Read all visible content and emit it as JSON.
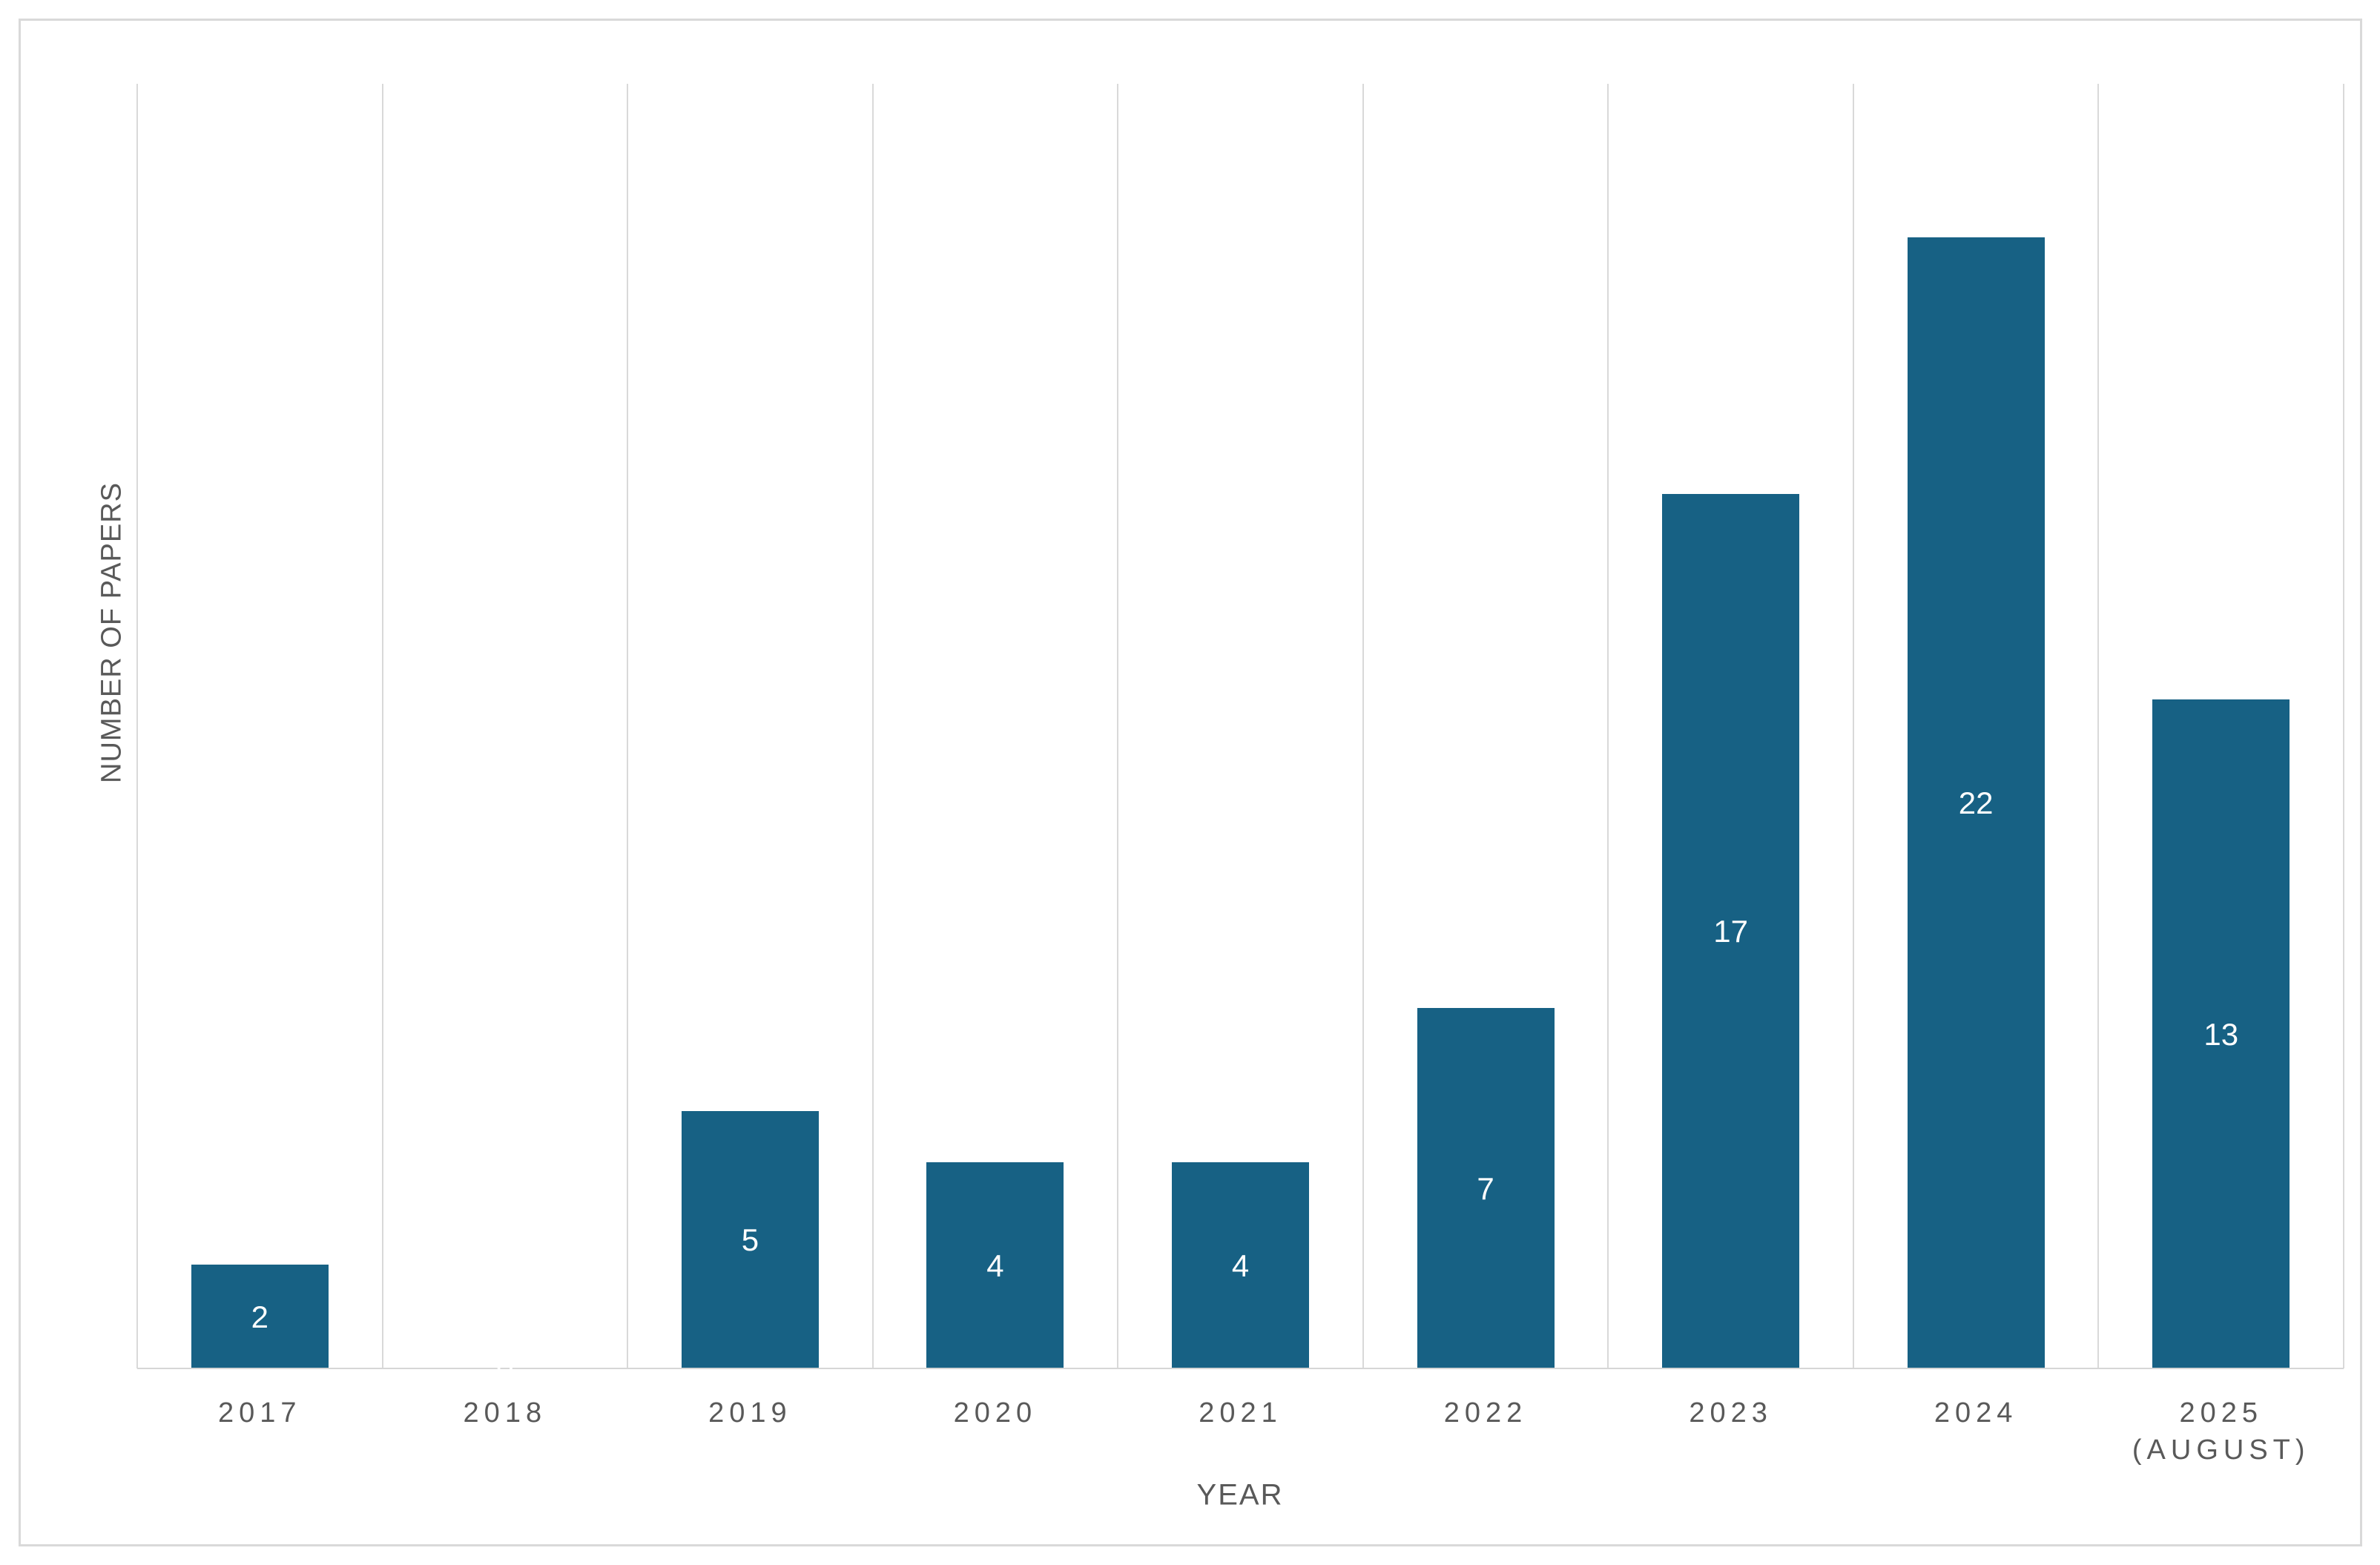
{
  "chart_data": {
    "type": "bar",
    "title": "",
    "xlabel": "YEAR",
    "ylabel": "NUMBER OF PAPERS",
    "categories": [
      "2017",
      "2018",
      "2019",
      "2020",
      "2021",
      "2022",
      "2023",
      "2024",
      "2025\n(AUGUST)"
    ],
    "values": [
      2,
      0,
      5,
      4,
      4,
      7,
      17,
      22,
      13
    ],
    "data_labels": [
      "2",
      "0",
      "5",
      "4",
      "4",
      "7",
      "17",
      "22",
      "13"
    ],
    "ylim": [
      0,
      25
    ],
    "grid": "vertical-category-boundaries",
    "legend": "none",
    "colors": {
      "bar": "#176184",
      "grid": "#d9d9d9",
      "axis_line": "#d6d6d6",
      "frame_border": "#d9d9d9",
      "tick_text": "#595959",
      "axis_title_text": "#595959",
      "data_label_text": "#ffffff",
      "background": "#ffffff"
    }
  }
}
